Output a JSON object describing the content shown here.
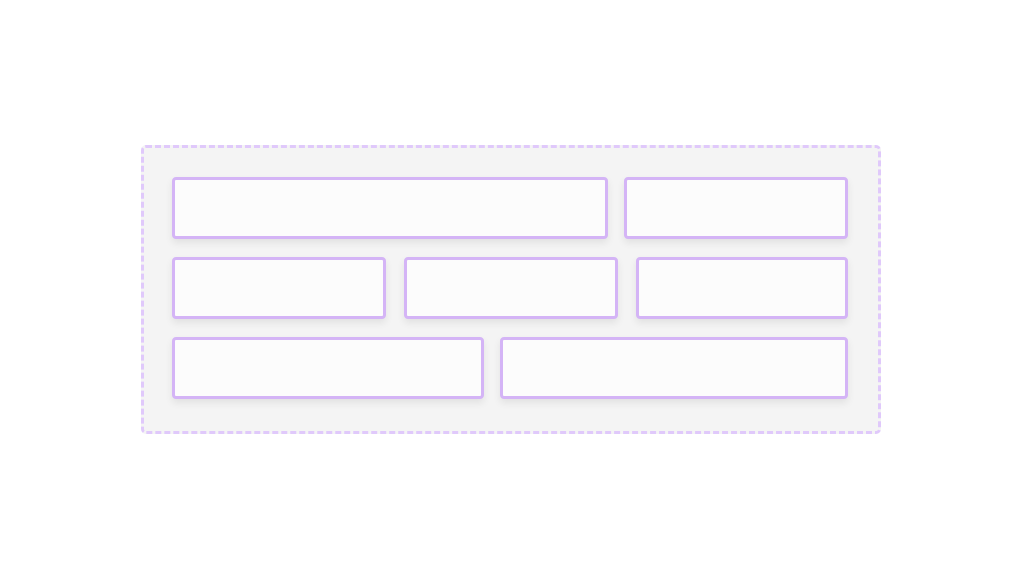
{
  "colors": {
    "container_border": "#e0c9fb",
    "container_fill": "#f4f4f4",
    "box_border": "#d4b4f6",
    "box_fill": "#fcfcfc"
  },
  "rows": [
    2,
    3,
    2
  ]
}
